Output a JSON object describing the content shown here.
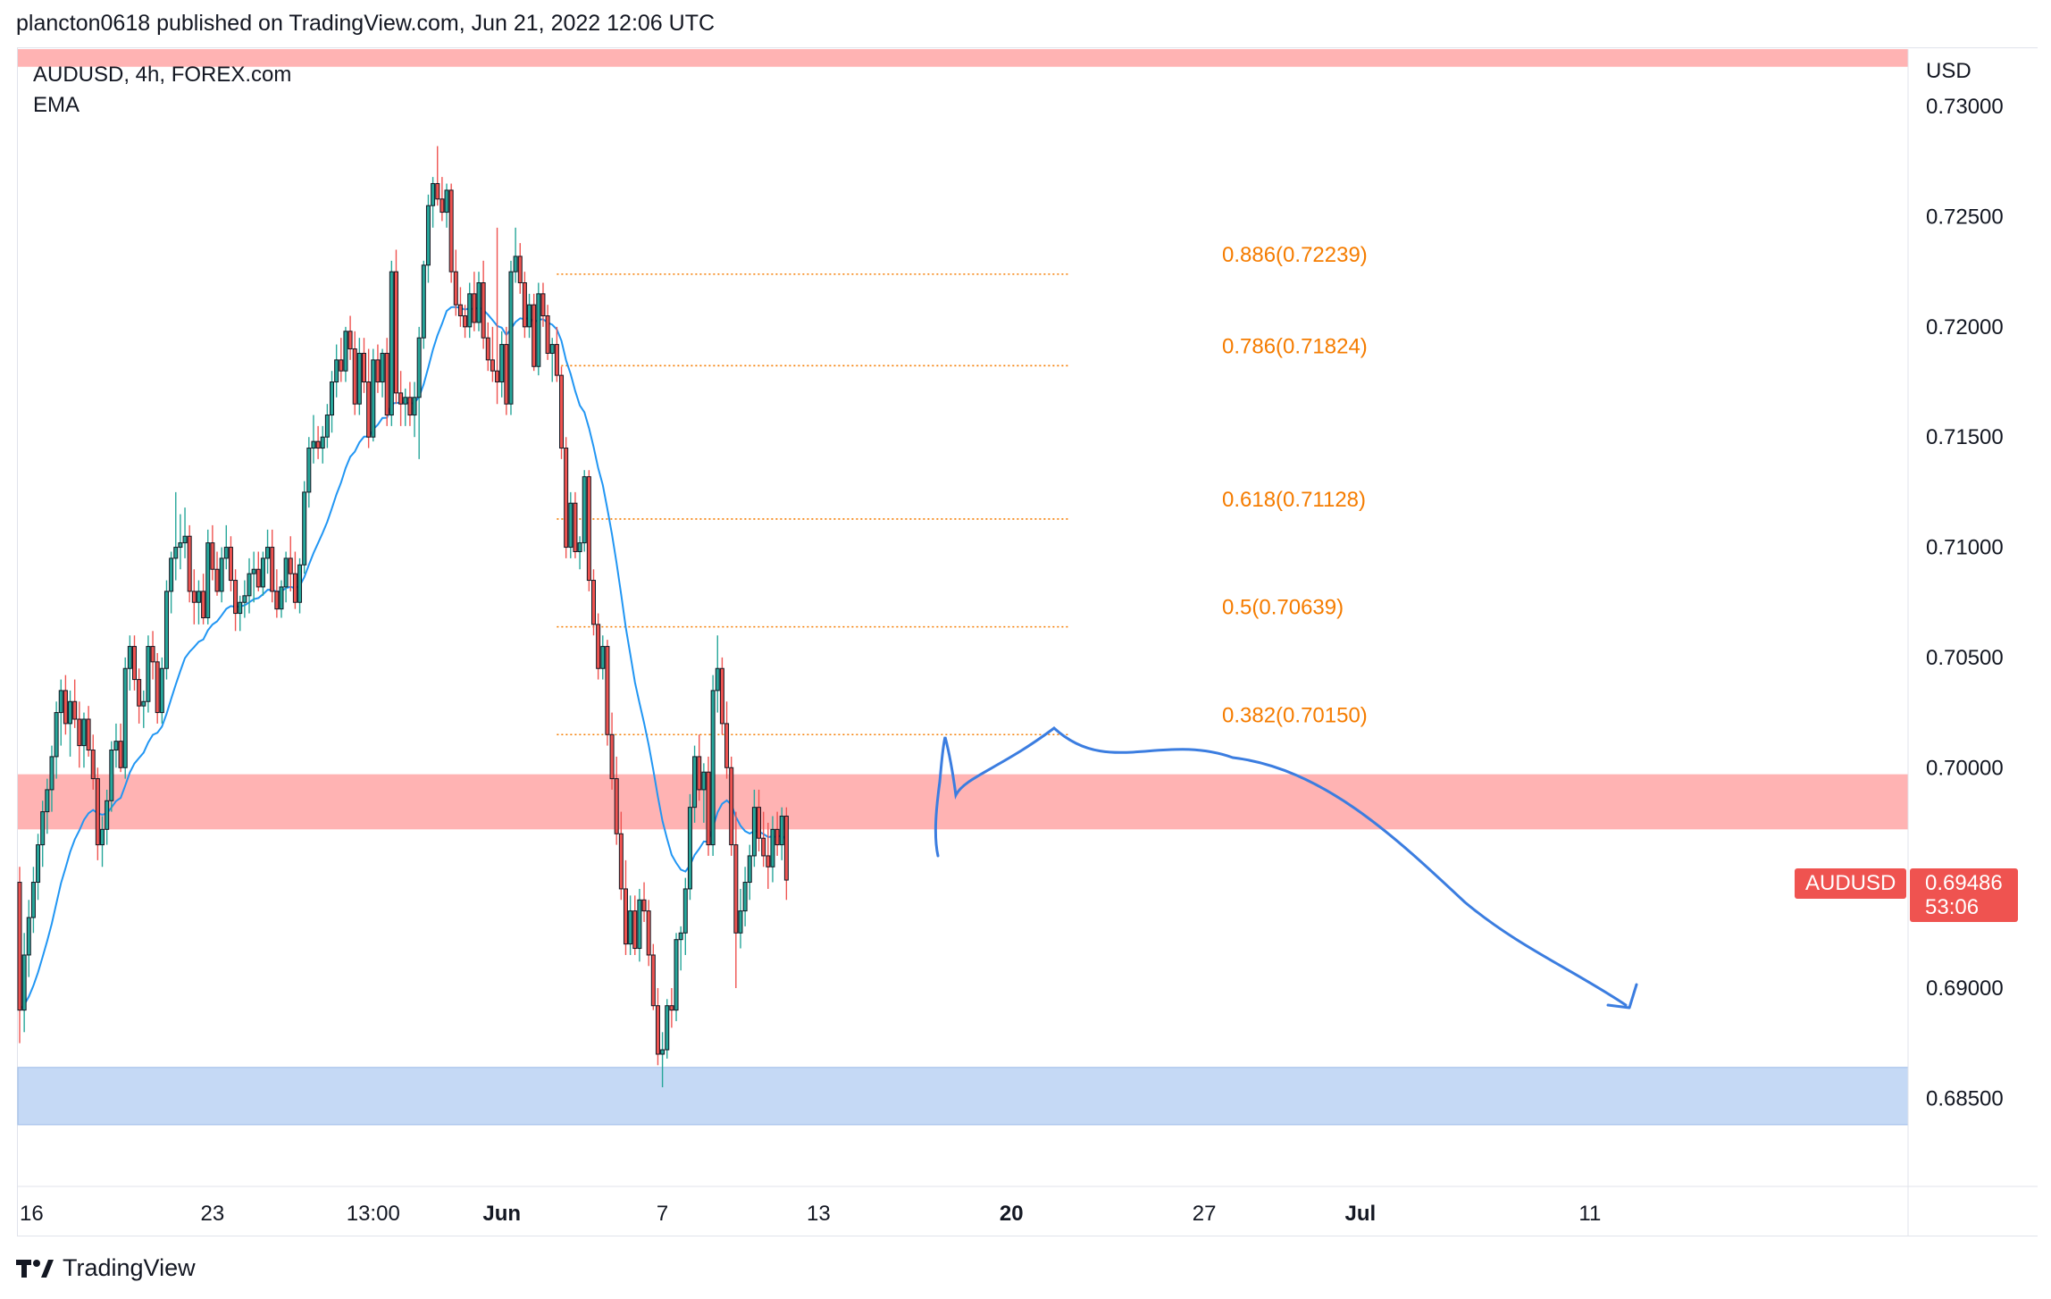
{
  "header": {
    "caption": "plancton0618 published on TradingView.com, Jun 21, 2022 12:06 UTC"
  },
  "legend": {
    "symbol": "AUDUSD, 4h, FOREX.com",
    "indicator": "EMA"
  },
  "price_axis": {
    "currency": "USD",
    "last_symbol": "AUDUSD",
    "last_price": "0.69486",
    "countdown": "53:06"
  },
  "footer": {
    "brand": "TradingView",
    "logo_icon": "tradingview-logo-icon"
  },
  "colors": {
    "up_candle": "#26a69a",
    "down_candle": "#ef5350",
    "ema": "#2196f3",
    "fib": "#f57c00",
    "resistance_zone": "#ffb3b3",
    "support_zone": "#c5d9f5",
    "projection": "#3b7de0"
  },
  "chart_data": {
    "type": "candlestick",
    "ylim": [
      0.681,
      0.7326
    ],
    "y_ticks": [
      "0.73000",
      "0.72500",
      "0.72000",
      "0.71500",
      "0.71000",
      "0.70500",
      "0.70000",
      "0.69000",
      "0.68500"
    ],
    "y_tick_values": [
      0.73,
      0.725,
      0.72,
      0.715,
      0.71,
      0.705,
      0.7,
      0.69,
      0.685
    ],
    "x_ticks": [
      "16",
      "23",
      "13:00",
      "Jun",
      "7",
      "13",
      "20",
      "27",
      "Jul",
      "11"
    ],
    "x_tick_bar_index": [
      0,
      42,
      77,
      105,
      140,
      174,
      216,
      258,
      292,
      342
    ],
    "x_tick_bold": [
      false,
      false,
      false,
      true,
      false,
      false,
      true,
      false,
      true,
      false
    ],
    "fib_levels": [
      {
        "label": "0.886(0.72239)",
        "value": 0.72239
      },
      {
        "label": "0.786(0.71824)",
        "value": 0.71824
      },
      {
        "label": "0.618(0.71128)",
        "value": 0.71128
      },
      {
        "label": "0.5(0.70639)",
        "value": 0.70639
      },
      {
        "label": "0.382(0.70150)",
        "value": 0.7015
      }
    ],
    "fib_bar_range": [
      117,
      217
    ],
    "zones": [
      {
        "name": "top-resistance",
        "from": 0.7318,
        "to": 0.7326
      },
      {
        "name": "resistance",
        "from": 0.6972,
        "to": 0.6997
      },
      {
        "name": "support",
        "from": 0.6838,
        "to": 0.6864
      }
    ],
    "candles": [
      [
        0.6948,
        0.6955,
        0.6875,
        0.689
      ],
      [
        0.689,
        0.6925,
        0.688,
        0.6915
      ],
      [
        0.6915,
        0.694,
        0.6905,
        0.6932
      ],
      [
        0.6932,
        0.6955,
        0.6925,
        0.6948
      ],
      [
        0.6948,
        0.697,
        0.694,
        0.6965
      ],
      [
        0.6965,
        0.6985,
        0.6955,
        0.698
      ],
      [
        0.698,
        0.6995,
        0.697,
        0.699
      ],
      [
        0.699,
        0.701,
        0.698,
        0.7005
      ],
      [
        0.7005,
        0.703,
        0.6995,
        0.7025
      ],
      [
        0.7025,
        0.704,
        0.701,
        0.7035
      ],
      [
        0.7035,
        0.7042,
        0.7015,
        0.702
      ],
      [
        0.702,
        0.7035,
        0.7005,
        0.703
      ],
      [
        0.703,
        0.704,
        0.7018,
        0.7022
      ],
      [
        0.7022,
        0.703,
        0.7,
        0.701
      ],
      [
        0.701,
        0.7025,
        0.7,
        0.7022
      ],
      [
        0.7022,
        0.7028,
        0.7005,
        0.7008
      ],
      [
        0.7008,
        0.7015,
        0.699,
        0.6995
      ],
      [
        0.6995,
        0.7,
        0.6958,
        0.6965
      ],
      [
        0.6965,
        0.6978,
        0.6955,
        0.6972
      ],
      [
        0.6972,
        0.699,
        0.6965,
        0.6985
      ],
      [
        0.6985,
        0.7012,
        0.698,
        0.7008
      ],
      [
        0.7008,
        0.702,
        0.7,
        0.7012
      ],
      [
        0.7012,
        0.702,
        0.6998,
        0.7
      ],
      [
        0.7,
        0.705,
        0.6995,
        0.7045
      ],
      [
        0.7045,
        0.706,
        0.7035,
        0.7055
      ],
      [
        0.7055,
        0.706,
        0.7035,
        0.704
      ],
      [
        0.704,
        0.7045,
        0.702,
        0.7028
      ],
      [
        0.7028,
        0.7035,
        0.7018,
        0.703
      ],
      [
        0.703,
        0.706,
        0.7025,
        0.7055
      ],
      [
        0.7055,
        0.7062,
        0.704,
        0.7048
      ],
      [
        0.7048,
        0.7052,
        0.702,
        0.7025
      ],
      [
        0.7025,
        0.705,
        0.702,
        0.7045
      ],
      [
        0.7045,
        0.7085,
        0.704,
        0.708
      ],
      [
        0.708,
        0.7098,
        0.707,
        0.7095
      ],
      [
        0.7095,
        0.7125,
        0.7085,
        0.71
      ],
      [
        0.71,
        0.7115,
        0.709,
        0.7102
      ],
      [
        0.7102,
        0.7118,
        0.7095,
        0.7105
      ],
      [
        0.7105,
        0.711,
        0.7075,
        0.708
      ],
      [
        0.708,
        0.709,
        0.7065,
        0.7075
      ],
      [
        0.7075,
        0.7085,
        0.7065,
        0.708
      ],
      [
        0.708,
        0.7088,
        0.7065,
        0.7068
      ],
      [
        0.7068,
        0.7108,
        0.7065,
        0.7102
      ],
      [
        0.7102,
        0.711,
        0.7085,
        0.709
      ],
      [
        0.709,
        0.7098,
        0.7078,
        0.708
      ],
      [
        0.708,
        0.71,
        0.7075,
        0.7095
      ],
      [
        0.7095,
        0.711,
        0.709,
        0.71
      ],
      [
        0.71,
        0.7105,
        0.708,
        0.7085
      ],
      [
        0.7085,
        0.709,
        0.7062,
        0.707
      ],
      [
        0.707,
        0.7078,
        0.7062,
        0.7075
      ],
      [
        0.7075,
        0.7085,
        0.7068,
        0.7078
      ],
      [
        0.7078,
        0.7095,
        0.707,
        0.7088
      ],
      [
        0.7088,
        0.7098,
        0.7075,
        0.709
      ],
      [
        0.709,
        0.7098,
        0.708,
        0.7082
      ],
      [
        0.7082,
        0.7098,
        0.7078,
        0.7095
      ],
      [
        0.7095,
        0.7108,
        0.7088,
        0.71
      ],
      [
        0.71,
        0.7108,
        0.7075,
        0.708
      ],
      [
        0.708,
        0.709,
        0.7068,
        0.7072
      ],
      [
        0.7072,
        0.7085,
        0.7068,
        0.7082
      ],
      [
        0.7082,
        0.7098,
        0.7075,
        0.7095
      ],
      [
        0.7095,
        0.7105,
        0.708,
        0.7088
      ],
      [
        0.7088,
        0.7098,
        0.7072,
        0.7075
      ],
      [
        0.7075,
        0.7095,
        0.707,
        0.7092
      ],
      [
        0.7092,
        0.713,
        0.7088,
        0.7125
      ],
      [
        0.7125,
        0.715,
        0.7118,
        0.7145
      ],
      [
        0.7145,
        0.716,
        0.7138,
        0.7148
      ],
      [
        0.7148,
        0.7155,
        0.714,
        0.7145
      ],
      [
        0.7145,
        0.7155,
        0.7138,
        0.715
      ],
      [
        0.715,
        0.7165,
        0.7145,
        0.716
      ],
      [
        0.716,
        0.718,
        0.7152,
        0.7175
      ],
      [
        0.7175,
        0.7192,
        0.7168,
        0.7185
      ],
      [
        0.7185,
        0.7195,
        0.7175,
        0.718
      ],
      [
        0.718,
        0.72,
        0.7175,
        0.7198
      ],
      [
        0.7198,
        0.7205,
        0.7185,
        0.719
      ],
      [
        0.719,
        0.7198,
        0.716,
        0.7165
      ],
      [
        0.7165,
        0.7195,
        0.716,
        0.7188
      ],
      [
        0.7188,
        0.7195,
        0.717,
        0.7175
      ],
      [
        0.7175,
        0.719,
        0.7145,
        0.715
      ],
      [
        0.715,
        0.719,
        0.7148,
        0.7185
      ],
      [
        0.7185,
        0.7192,
        0.717,
        0.7175
      ],
      [
        0.7175,
        0.719,
        0.7168,
        0.7188
      ],
      [
        0.7188,
        0.7195,
        0.7155,
        0.716
      ],
      [
        0.716,
        0.723,
        0.7155,
        0.7225
      ],
      [
        0.7225,
        0.7235,
        0.7165,
        0.717
      ],
      [
        0.717,
        0.718,
        0.7155,
        0.7165
      ],
      [
        0.7165,
        0.7172,
        0.7155,
        0.7168
      ],
      [
        0.7168,
        0.7175,
        0.7155,
        0.716
      ],
      [
        0.716,
        0.7175,
        0.715,
        0.7168
      ],
      [
        0.7168,
        0.72,
        0.714,
        0.7195
      ],
      [
        0.7195,
        0.723,
        0.719,
        0.7228
      ],
      [
        0.7228,
        0.726,
        0.722,
        0.7255
      ],
      [
        0.7255,
        0.7268,
        0.7245,
        0.7265
      ],
      [
        0.7265,
        0.7282,
        0.7255,
        0.7258
      ],
      [
        0.7258,
        0.7268,
        0.7248,
        0.7252
      ],
      [
        0.7252,
        0.7265,
        0.7245,
        0.7262
      ],
      [
        0.7262,
        0.7265,
        0.722,
        0.7225
      ],
      [
        0.7225,
        0.7235,
        0.7205,
        0.721
      ],
      [
        0.721,
        0.7218,
        0.72,
        0.7205
      ],
      [
        0.7205,
        0.721,
        0.7195,
        0.72
      ],
      [
        0.72,
        0.722,
        0.7195,
        0.7215
      ],
      [
        0.7215,
        0.7225,
        0.7198,
        0.7202
      ],
      [
        0.7202,
        0.7225,
        0.7198,
        0.722
      ],
      [
        0.722,
        0.723,
        0.719,
        0.7195
      ],
      [
        0.7195,
        0.7202,
        0.718,
        0.7185
      ],
      [
        0.7185,
        0.72,
        0.7175,
        0.718
      ],
      [
        0.718,
        0.7245,
        0.7165,
        0.7175
      ],
      [
        0.7175,
        0.7198,
        0.7168,
        0.7192
      ],
      [
        0.7192,
        0.72,
        0.716,
        0.7165
      ],
      [
        0.7165,
        0.723,
        0.716,
        0.7225
      ],
      [
        0.7225,
        0.7245,
        0.722,
        0.7232
      ],
      [
        0.7232,
        0.7238,
        0.7215,
        0.722
      ],
      [
        0.722,
        0.7225,
        0.7195,
        0.72
      ],
      [
        0.72,
        0.7215,
        0.7195,
        0.721
      ],
      [
        0.721,
        0.7215,
        0.718,
        0.7182
      ],
      [
        0.7182,
        0.722,
        0.7178,
        0.7215
      ],
      [
        0.7215,
        0.722,
        0.72,
        0.7205
      ],
      [
        0.7205,
        0.721,
        0.7185,
        0.7188
      ],
      [
        0.7188,
        0.7195,
        0.7175,
        0.7192
      ],
      [
        0.7192,
        0.72,
        0.7175,
        0.7178
      ],
      [
        0.7178,
        0.7182,
        0.714,
        0.7145
      ],
      [
        0.7145,
        0.715,
        0.7095,
        0.71
      ],
      [
        0.71,
        0.7125,
        0.7095,
        0.712
      ],
      [
        0.712,
        0.7125,
        0.7095,
        0.7098
      ],
      [
        0.7098,
        0.7105,
        0.709,
        0.7102
      ],
      [
        0.7102,
        0.7135,
        0.7098,
        0.7132
      ],
      [
        0.7132,
        0.7135,
        0.708,
        0.7085
      ],
      [
        0.7085,
        0.709,
        0.706,
        0.7065
      ],
      [
        0.7065,
        0.707,
        0.704,
        0.7045
      ],
      [
        0.7045,
        0.706,
        0.704,
        0.7055
      ],
      [
        0.7055,
        0.7058,
        0.701,
        0.7015
      ],
      [
        0.7015,
        0.7025,
        0.699,
        0.6995
      ],
      [
        0.6995,
        0.7005,
        0.6965,
        0.697
      ],
      [
        0.697,
        0.698,
        0.694,
        0.6945
      ],
      [
        0.6945,
        0.6958,
        0.6915,
        0.692
      ],
      [
        0.692,
        0.6942,
        0.6915,
        0.6935
      ],
      [
        0.6935,
        0.6942,
        0.6915,
        0.6918
      ],
      [
        0.6918,
        0.6945,
        0.6912,
        0.694
      ],
      [
        0.694,
        0.6948,
        0.693,
        0.6935
      ],
      [
        0.6935,
        0.694,
        0.691,
        0.6915
      ],
      [
        0.6915,
        0.692,
        0.689,
        0.6892
      ],
      [
        0.6892,
        0.69,
        0.6865,
        0.687
      ],
      [
        0.687,
        0.688,
        0.6855,
        0.6872
      ],
      [
        0.6872,
        0.6895,
        0.6868,
        0.6892
      ],
      [
        0.6892,
        0.69,
        0.6882,
        0.689
      ],
      [
        0.689,
        0.6925,
        0.6885,
        0.6922
      ],
      [
        0.6922,
        0.6928,
        0.6908,
        0.6925
      ],
      [
        0.6925,
        0.695,
        0.6915,
        0.6945
      ],
      [
        0.6945,
        0.6988,
        0.694,
        0.6982
      ],
      [
        0.6982,
        0.701,
        0.6975,
        0.7005
      ],
      [
        0.7005,
        0.7015,
        0.6985,
        0.699
      ],
      [
        0.699,
        0.7002,
        0.6975,
        0.6998
      ],
      [
        0.6998,
        0.7005,
        0.696,
        0.6965
      ],
      [
        0.6965,
        0.7042,
        0.696,
        0.7035
      ],
      [
        0.7035,
        0.706,
        0.7025,
        0.7045
      ],
      [
        0.7045,
        0.705,
        0.7015,
        0.702
      ],
      [
        0.702,
        0.703,
        0.6995,
        0.7
      ],
      [
        0.7,
        0.7005,
        0.696,
        0.6965
      ],
      [
        0.6965,
        0.698,
        0.69,
        0.6925
      ],
      [
        0.6925,
        0.6945,
        0.6918,
        0.6935
      ],
      [
        0.6935,
        0.6955,
        0.6928,
        0.6948
      ],
      [
        0.6948,
        0.6965,
        0.694,
        0.696
      ],
      [
        0.696,
        0.699,
        0.6955,
        0.6982
      ],
      [
        0.6982,
        0.699,
        0.6962,
        0.6968
      ],
      [
        0.6968,
        0.698,
        0.6955,
        0.696
      ],
      [
        0.696,
        0.6975,
        0.6945,
        0.6955
      ],
      [
        0.6955,
        0.6978,
        0.6948,
        0.6972
      ],
      [
        0.6972,
        0.698,
        0.696,
        0.6965
      ],
      [
        0.6965,
        0.6982,
        0.6958,
        0.6978
      ],
      [
        0.6978,
        0.6982,
        0.694,
        0.6949
      ]
    ]
  }
}
